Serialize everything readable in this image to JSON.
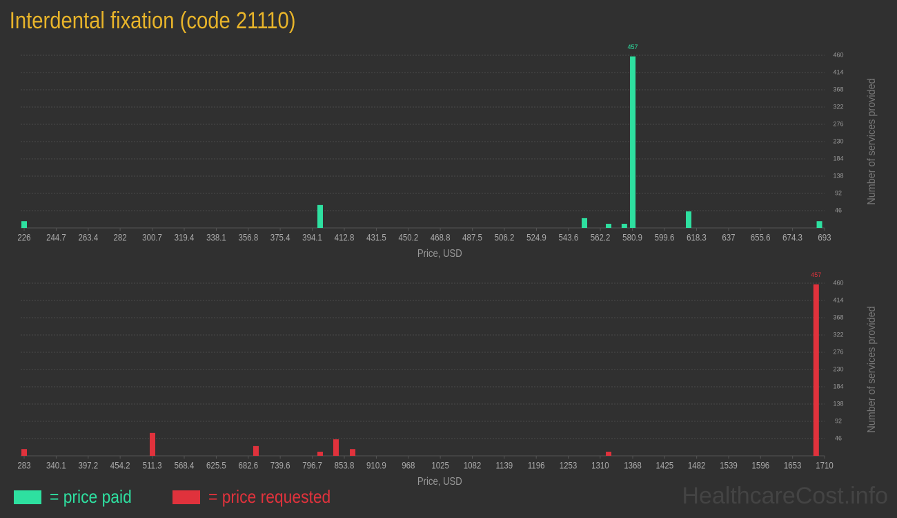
{
  "title": "Interdental fixation (code 21110)",
  "watermark": "HealthcareCost.info",
  "chart_data": [
    {
      "type": "bar",
      "xlabel": "Price, USD",
      "ylabel": "Number of services provided",
      "x": [
        226,
        398.7,
        552.9,
        567,
        576.2,
        581.1,
        613.7,
        690
      ],
      "series": [
        {
          "name": "= price paid",
          "color": "#2ee0a0",
          "values": [
            18,
            61,
            26,
            11,
            11,
            457,
            44,
            18
          ]
        }
      ],
      "xlim": [
        226,
        693
      ],
      "xticks": [
        226,
        244.7,
        263.4,
        282,
        300.7,
        319.4,
        338.1,
        356.8,
        375.4,
        394.1,
        412.8,
        431.5,
        450.2,
        468.8,
        487.5,
        506.2,
        524.9,
        543.6,
        562.2,
        580.9,
        599.6,
        618.3,
        637,
        655.6,
        674.3,
        693
      ],
      "ylim": [
        0,
        460
      ],
      "yticks": [
        46,
        92,
        138,
        184,
        230,
        276,
        322,
        368,
        414,
        460
      ],
      "grid": true,
      "max_label": true
    },
    {
      "type": "bar",
      "xlabel": "Price, USD",
      "ylabel": "Number of services provided",
      "x": [
        283,
        511.8,
        696.3,
        810.7,
        839,
        868.6,
        1325,
        1695
      ],
      "series": [
        {
          "name": "= price requested",
          "color": "#e0323c",
          "values": [
            18,
            61,
            26,
            11,
            44,
            18,
            11,
            457
          ]
        }
      ],
      "xlim": [
        283,
        1710
      ],
      "xticks": [
        283,
        340.1,
        397.2,
        454.2,
        511.3,
        568.4,
        625.5,
        682.6,
        739.6,
        796.7,
        853.8,
        910.9,
        968,
        1025,
        1082,
        1139,
        1196,
        1253,
        1310,
        1368,
        1425,
        1482,
        1539,
        1596,
        1653,
        1710
      ],
      "ylim": [
        0,
        460
      ],
      "yticks": [
        46,
        92,
        138,
        184,
        230,
        276,
        322,
        368,
        414,
        460
      ],
      "grid": true,
      "max_label": true
    }
  ]
}
